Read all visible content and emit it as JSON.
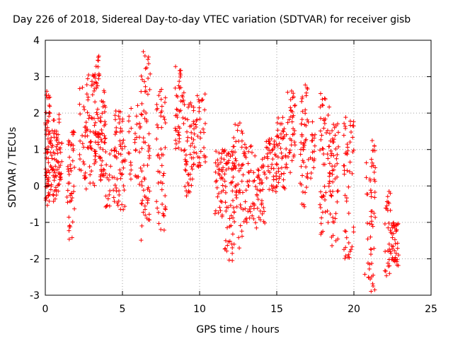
{
  "chart_data": {
    "type": "scatter",
    "title": "Day 226 of 2018, Sidereal Day-to-day VTEC variation (SDTVAR) for receiver gisb",
    "xlabel": "GPS time / hours",
    "ylabel": "SDTVAR / TECUs",
    "xlim": [
      0,
      25
    ],
    "ylim": [
      -3,
      4
    ],
    "xticks": [
      0,
      5,
      10,
      15,
      20,
      25
    ],
    "yticks": [
      -3,
      -2,
      -1,
      0,
      1,
      2,
      3,
      4
    ],
    "grid": true,
    "marker": "+",
    "color": "#ff0000",
    "series": [
      {
        "name": "SDTVAR",
        "clusters": [
          {
            "x0": 0.0,
            "x1": 0.3,
            "ymin": -0.6,
            "ymax": 2.6,
            "n": 60
          },
          {
            "x0": 0.3,
            "x1": 0.9,
            "ymin": -0.5,
            "ymax": 2.0,
            "n": 70
          },
          {
            "x0": 0.9,
            "x1": 1.1,
            "ymin": 0.0,
            "ymax": 1.2,
            "n": 15
          },
          {
            "x0": 1.4,
            "x1": 1.9,
            "ymin": -1.6,
            "ymax": 1.5,
            "n": 45
          },
          {
            "x0": 2.2,
            "x1": 2.5,
            "ymin": 0.3,
            "ymax": 2.8,
            "n": 14
          },
          {
            "x0": 2.5,
            "x1": 3.2,
            "ymin": -0.1,
            "ymax": 3.1,
            "n": 55
          },
          {
            "x0": 3.2,
            "x1": 3.5,
            "ymin": 0.2,
            "ymax": 3.6,
            "n": 45
          },
          {
            "x0": 3.5,
            "x1": 3.9,
            "ymin": 0.0,
            "ymax": 2.7,
            "n": 45
          },
          {
            "x0": 3.9,
            "x1": 4.5,
            "ymin": -0.6,
            "ymax": 1.0,
            "n": 25
          },
          {
            "x0": 4.5,
            "x1": 5.2,
            "ymin": -0.7,
            "ymax": 2.2,
            "n": 55
          },
          {
            "x0": 5.3,
            "x1": 5.6,
            "ymin": 0.1,
            "ymax": 2.3,
            "n": 12
          },
          {
            "x0": 5.8,
            "x1": 6.2,
            "ymin": 0.0,
            "ymax": 2.3,
            "n": 20
          },
          {
            "x0": 6.2,
            "x1": 6.8,
            "ymin": -1.6,
            "ymax": 3.7,
            "n": 65
          },
          {
            "x0": 7.2,
            "x1": 7.8,
            "ymin": -1.3,
            "ymax": 2.7,
            "n": 50
          },
          {
            "x0": 8.4,
            "x1": 9.0,
            "ymin": 0.9,
            "ymax": 3.4,
            "n": 45
          },
          {
            "x0": 9.0,
            "x1": 9.6,
            "ymin": -0.3,
            "ymax": 2.3,
            "n": 45
          },
          {
            "x0": 9.6,
            "x1": 10.4,
            "ymin": 0.5,
            "ymax": 2.6,
            "n": 45
          },
          {
            "x0": 11.0,
            "x1": 11.6,
            "ymin": -0.9,
            "ymax": 1.0,
            "n": 40
          },
          {
            "x0": 11.6,
            "x1": 12.2,
            "ymin": -2.1,
            "ymax": 1.1,
            "n": 55
          },
          {
            "x0": 12.2,
            "x1": 12.8,
            "ymin": -1.9,
            "ymax": 1.8,
            "n": 50
          },
          {
            "x0": 12.8,
            "x1": 13.6,
            "ymin": -1.0,
            "ymax": 1.2,
            "n": 45
          },
          {
            "x0": 13.6,
            "x1": 14.3,
            "ymin": -1.2,
            "ymax": 0.9,
            "n": 40
          },
          {
            "x0": 14.3,
            "x1": 15.0,
            "ymin": -0.3,
            "ymax": 1.3,
            "n": 45
          },
          {
            "x0": 15.0,
            "x1": 15.7,
            "ymin": -0.1,
            "ymax": 1.9,
            "n": 45
          },
          {
            "x0": 15.7,
            "x1": 16.2,
            "ymin": 0.3,
            "ymax": 2.7,
            "n": 35
          },
          {
            "x0": 16.5,
            "x1": 17.0,
            "ymin": -0.6,
            "ymax": 2.9,
            "n": 45
          },
          {
            "x0": 17.0,
            "x1": 17.5,
            "ymin": 0.1,
            "ymax": 1.8,
            "n": 20
          },
          {
            "x0": 17.8,
            "x1": 18.4,
            "ymin": -1.4,
            "ymax": 2.6,
            "n": 50
          },
          {
            "x0": 18.4,
            "x1": 19.0,
            "ymin": -1.9,
            "ymax": 1.8,
            "n": 55
          },
          {
            "x0": 19.3,
            "x1": 20.0,
            "ymin": -2.0,
            "ymax": 2.0,
            "n": 50
          },
          {
            "x0": 20.7,
            "x1": 21.0,
            "ymin": -2.6,
            "ymax": 0.8,
            "n": 10
          },
          {
            "x0": 21.0,
            "x1": 21.4,
            "ymin": -2.9,
            "ymax": 1.3,
            "n": 45
          },
          {
            "x0": 22.0,
            "x1": 22.4,
            "ymin": -2.5,
            "ymax": -0.1,
            "n": 30
          },
          {
            "x0": 22.4,
            "x1": 22.9,
            "ymin": -2.2,
            "ymax": -1.0,
            "n": 40
          }
        ]
      }
    ]
  }
}
